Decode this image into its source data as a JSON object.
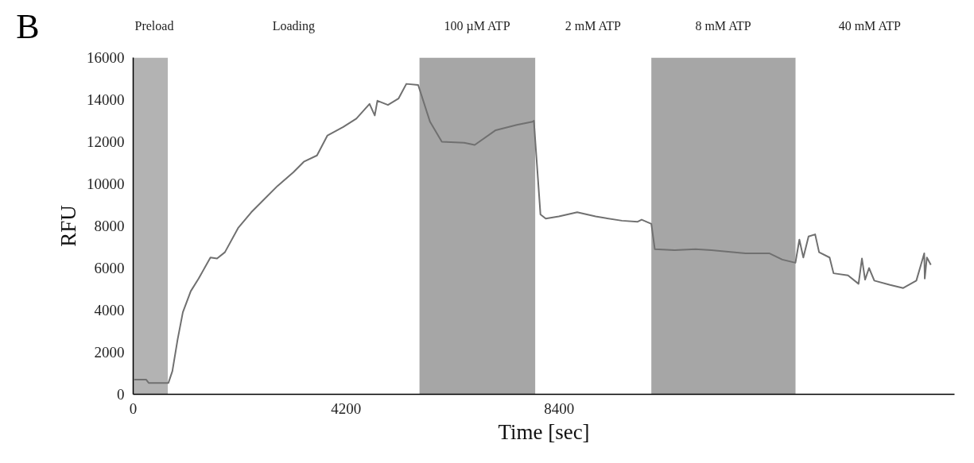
{
  "chart_data": {
    "type": "line",
    "xlabel": "Time [sec]",
    "ylabel": "RFU",
    "annotations": [
      "B"
    ],
    "x": [
      20,
      254,
      306,
      695,
      773,
      876,
      980,
      1136,
      1291,
      1524,
      1654,
      1809,
      2069,
      2329,
      2536,
      2847,
      3158,
      3365,
      3625,
      3832,
      4143,
      4402,
      4662,
      4765,
      4817,
      5025,
      5232,
      5388,
      5621,
      5855,
      6088,
      6529,
      6736,
      7151,
      7566,
      7877,
      7903,
      8033,
      8137,
      8396,
      8758,
      9121,
      9640,
      9951,
      10029,
      10220,
      10288,
      10677,
      11091,
      11403,
      12077,
      12544,
      12803,
      13062,
      13140,
      13218,
      13321,
      13451,
      13529,
      13736,
      13814,
      14099,
      14307,
      14374,
      14436,
      14514,
      14618,
      14929,
      15188,
      15447,
      15603,
      15613,
      15655,
      15733
    ],
    "series": [
      {
        "color": "#707070",
        "values": [
          700,
          700,
          540,
          540,
          1100,
          2600,
          3900,
          4900,
          5500,
          6500,
          6450,
          6750,
          7900,
          8650,
          9150,
          9900,
          10550,
          11050,
          11350,
          12300,
          12700,
          13100,
          13800,
          13250,
          13950,
          13750,
          14050,
          14750,
          14700,
          12950,
          12000,
          11950,
          11850,
          12550,
          12800,
          12950,
          13000,
          8550,
          8350,
          8450,
          8650,
          8450,
          8250,
          8200,
          8300,
          8100,
          6900,
          6850,
          6900,
          6850,
          6700,
          6700,
          6400,
          6250,
          7350,
          6500,
          7500,
          7600,
          6750,
          6500,
          5750,
          5650,
          5250,
          6450,
          5450,
          6000,
          5400,
          5200,
          5050,
          5400,
          6700,
          5500,
          6500,
          6150
        ]
      }
    ],
    "xlim": [
      0,
      16200
    ],
    "ylim": [
      0,
      16000
    ],
    "xticks": [
      0,
      4200,
      8400
    ],
    "yticks": [
      0,
      2000,
      4000,
      6000,
      8000,
      10000,
      12000,
      14000,
      16000
    ],
    "bands": [
      {
        "axis": "x",
        "from": 0,
        "to": 684,
        "label": "Preload",
        "color": "#b3b3b3"
      },
      {
        "axis": "x",
        "from": 684,
        "to": 5647,
        "label": "Loading",
        "color": "#ffffff"
      },
      {
        "axis": "x",
        "from": 5647,
        "to": 7933,
        "label": "100 µM ATP",
        "color": "#a6a6a6"
      },
      {
        "axis": "x",
        "from": 7933,
        "to": 10220,
        "label": "2 mM ATP",
        "color": "#ffffff"
      },
      {
        "axis": "x",
        "from": 10220,
        "to": 13067,
        "label": "8 mM ATP",
        "color": "#a6a6a6"
      },
      {
        "axis": "x",
        "from": 13067,
        "to": 16000,
        "label": "40 mM ATP",
        "color": "#ffffff"
      }
    ],
    "grid": false,
    "line_style": "solid",
    "marker": "none"
  }
}
